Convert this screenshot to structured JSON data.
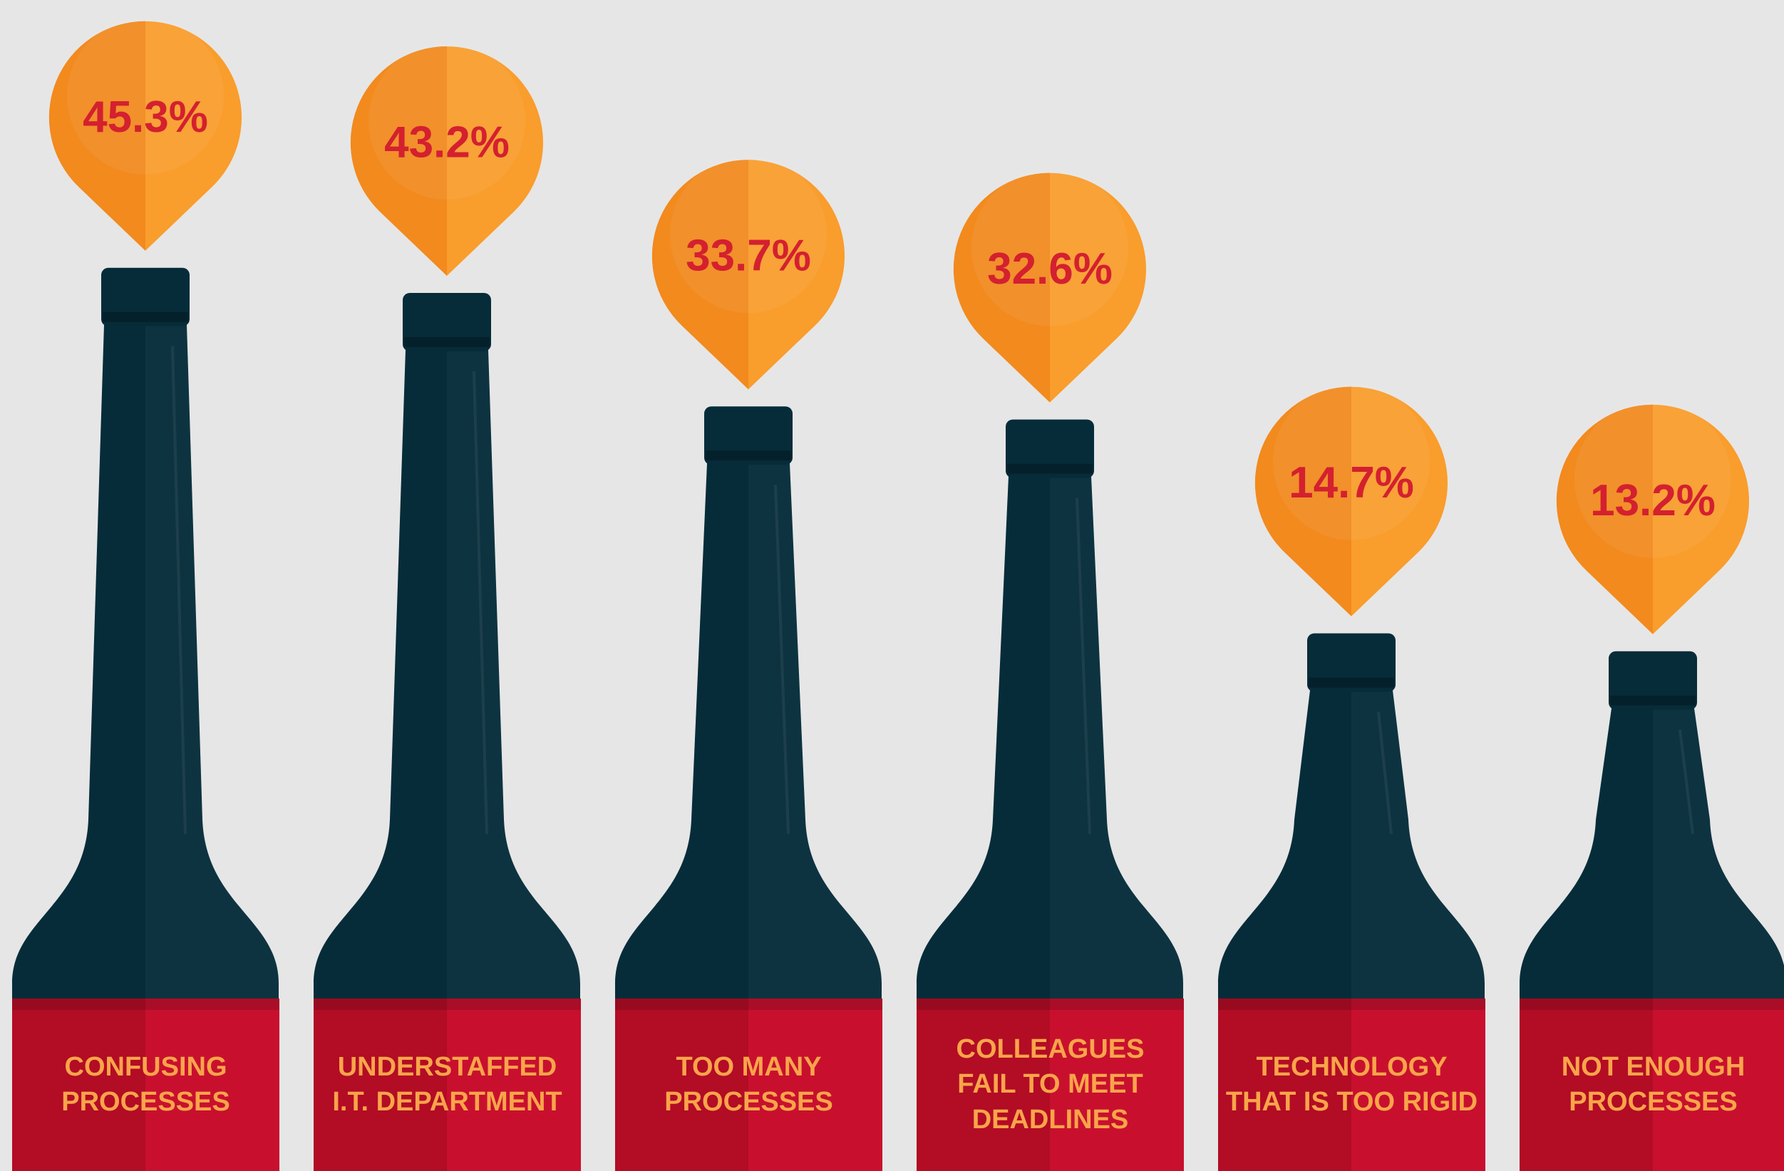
{
  "chart_data": {
    "type": "bar",
    "categories": [
      "CONFUSING PROCESSES",
      "UNDERSTAFFED I.T. DEPARTMENT",
      "TOO MANY PROCESSES",
      "COLLEAGUES FAIL TO MEET DEADLINES",
      "TECHNOLOGY THAT IS TOO RIGID",
      "NOT ENOUGH PROCESSES"
    ],
    "values": [
      45.3,
      43.2,
      33.7,
      32.6,
      14.7,
      13.2
    ],
    "value_labels": [
      "45.3%",
      "43.2%",
      "33.7%",
      "32.6%",
      "14.7%",
      "13.2%"
    ],
    "color": "#062c3a"
  }
}
